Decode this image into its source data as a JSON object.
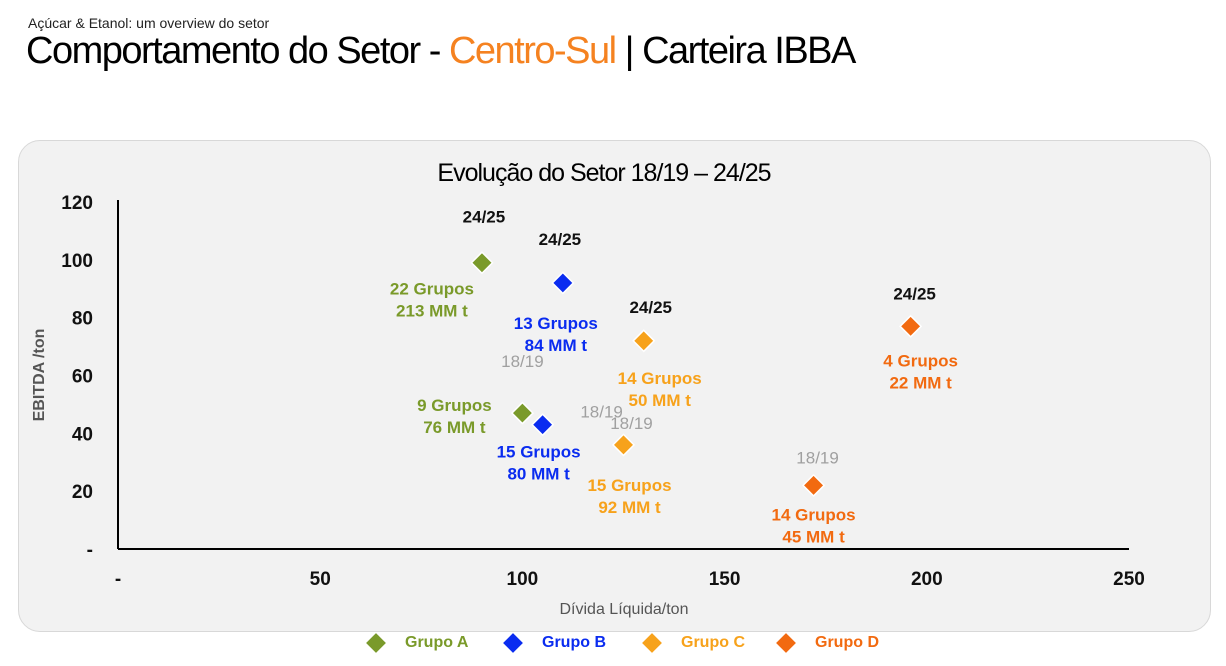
{
  "header": {
    "kicker": "Açúcar & Etanol: um overview do setor",
    "title_main": "Comportamento do Setor - ",
    "title_accent": "Centro-Sul",
    "title_tail": " | Carteira IBBA"
  },
  "colors": {
    "accent": "#f58220",
    "grupo_a": "#7a9a2a",
    "grupo_b": "#0a2cf0",
    "grupo_c": "#f7a21b",
    "grupo_d": "#f26a10",
    "label_year_old": "#a0a0a0",
    "label_year_new": "#111111"
  },
  "chart_data": {
    "type": "scatter",
    "title": "Evolução do Setor 18/19 – 24/25",
    "xlabel": "Dívida Líquida/ton",
    "ylabel": "EBITDA /ton",
    "xlim": [
      0,
      250
    ],
    "ylim": [
      0,
      120
    ],
    "x_ticks": [
      {
        "value": 0,
        "label": "-"
      },
      {
        "value": 50,
        "label": "50"
      },
      {
        "value": 100,
        "label": "100"
      },
      {
        "value": 150,
        "label": "150"
      },
      {
        "value": 200,
        "label": "200"
      },
      {
        "value": 250,
        "label": "250"
      }
    ],
    "y_ticks": [
      {
        "value": 0,
        "label": "-"
      },
      {
        "value": 20,
        "label": "20"
      },
      {
        "value": 40,
        "label": "40"
      },
      {
        "value": 60,
        "label": "60"
      },
      {
        "value": 80,
        "label": "80"
      },
      {
        "value": 100,
        "label": "100"
      },
      {
        "value": 120,
        "label": "120"
      }
    ],
    "grid": false,
    "legend_position": "bottom",
    "series": [
      {
        "name": "Grupo A",
        "color_key": "grupo_a",
        "points": [
          {
            "x": 100,
            "y": 47,
            "year": "18/19",
            "groups": "9 Grupos",
            "volume": "76 MM t"
          },
          {
            "x": 90,
            "y": 99,
            "year": "24/25",
            "groups": "22 Grupos",
            "volume": "213 MM t"
          }
        ]
      },
      {
        "name": "Grupo B",
        "color_key": "grupo_b",
        "points": [
          {
            "x": 105,
            "y": 43,
            "year": "18/19",
            "groups": "15 Grupos",
            "volume": "80 MM t"
          },
          {
            "x": 110,
            "y": 92,
            "year": "24/25",
            "groups": "13 Grupos",
            "volume": "84 MM t"
          }
        ]
      },
      {
        "name": "Grupo C",
        "color_key": "grupo_c",
        "points": [
          {
            "x": 125,
            "y": 36,
            "year": "18/19",
            "groups": "15 Grupos",
            "volume": "92 MM t"
          },
          {
            "x": 130,
            "y": 72,
            "year": "24/25",
            "groups": "14 Grupos",
            "volume": "50 MM t"
          }
        ]
      },
      {
        "name": "Grupo D",
        "color_key": "grupo_d",
        "points": [
          {
            "x": 172,
            "y": 22,
            "year": "18/19",
            "groups": "14 Grupos",
            "volume": "45 MM t"
          },
          {
            "x": 196,
            "y": 77,
            "year": "24/25",
            "groups": "4 Grupos",
            "volume": "22 MM t"
          }
        ]
      }
    ]
  }
}
